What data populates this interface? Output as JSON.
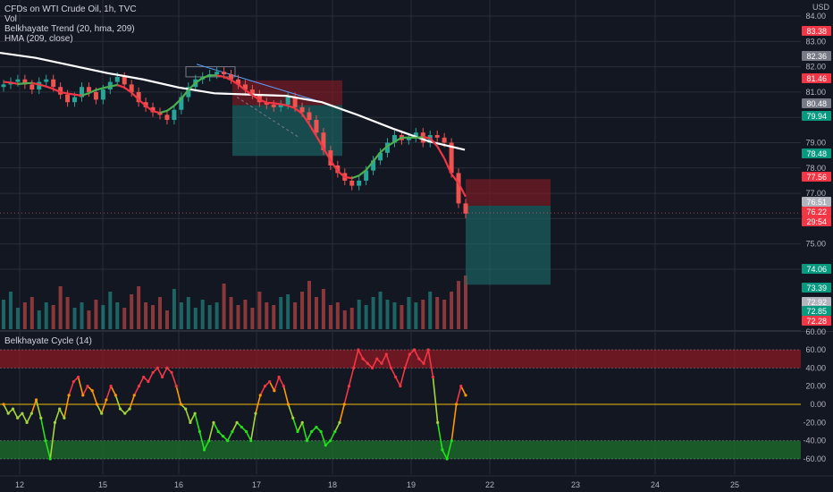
{
  "legend": {
    "symbol": "CFDs on WTI Crude Oil, 1h, TVC",
    "volume": "Vol",
    "trend": "Belkhayate Trend (20, hma, 209)",
    "hma": "HMA (209, close)",
    "oscillator": "Belkhayate Cycle  (14)"
  },
  "price_axis": {
    "currency": "USD",
    "ticks": [
      "84.00",
      "83.00",
      "82.00",
      "81.00",
      "80.00",
      "79.00",
      "78.00",
      "77.00",
      "76.00",
      "75.00",
      "74.00"
    ],
    "badges": [
      {
        "text": "83.38",
        "color": "#f23645"
      },
      {
        "text": "82.36",
        "color": "#787b86"
      },
      {
        "text": "81.46",
        "color": "#f23645"
      },
      {
        "text": "80.48",
        "color": "#787b86"
      },
      {
        "text": "79.94",
        "color": "#089981"
      },
      {
        "text": "78.48",
        "color": "#089981"
      },
      {
        "text": "77.56",
        "color": "#f23645"
      },
      {
        "text": "76.51",
        "color": "#b2b5be"
      },
      {
        "text": "76.22",
        "color": "#f23645"
      },
      {
        "text": "29:54",
        "color": "#f23645"
      },
      {
        "text": "74.06",
        "color": "#089981"
      },
      {
        "text": "73.39",
        "color": "#089981"
      },
      {
        "text": "72.92",
        "color": "#b2b5be"
      },
      {
        "text": "72.85",
        "color": "#089981"
      },
      {
        "text": "72.28",
        "color": "#f23645"
      }
    ]
  },
  "osc_axis": {
    "ticks": [
      "60.00",
      "40.00",
      "20.00",
      "0.00",
      "-20.00",
      "-40.00",
      "-60.00"
    ],
    "top_label": "60.00"
  },
  "time_axis": [
    "12",
    "15",
    "16",
    "17",
    "18",
    "19",
    "22",
    "23",
    "24",
    "25"
  ],
  "colors": {
    "background": "#131722",
    "grid": "#2a2e39",
    "up": "#26a69a",
    "down": "#ef5350",
    "hma": "#ffffff",
    "trend_up": "#4caf50",
    "trend_down": "#f23645",
    "zero_line": "#f0b90b"
  },
  "chart_data": [
    {
      "type": "candlestick",
      "title": "CFDs on WTI Crude Oil, 1h, TVC",
      "ylim": [
        74,
        84.3
      ],
      "x_labels": [
        "12",
        "15",
        "16",
        "17",
        "18",
        "19",
        "22",
        "23",
        "24",
        "25"
      ],
      "close_path": [
        81.3,
        81.4,
        81.5,
        81.3,
        81.1,
        81.4,
        81.5,
        81.2,
        80.9,
        80.6,
        80.8,
        81.2,
        81.0,
        80.7,
        81.1,
        81.4,
        81.6,
        81.3,
        81.0,
        80.6,
        80.4,
        80.2,
        80.1,
        79.9,
        80.3,
        80.8,
        81.2,
        81.5,
        81.6,
        81.7,
        81.8,
        81.7,
        81.5,
        81.3,
        81.1,
        80.9,
        80.6,
        80.5,
        80.4,
        80.5,
        80.8,
        80.4,
        80.2,
        79.9,
        79.4,
        78.7,
        78.1,
        77.8,
        77.5,
        77.3,
        77.5,
        77.9,
        78.3,
        78.6,
        79.0,
        79.3,
        79.1,
        79.2,
        79.4,
        79.0,
        79.3,
        79.2,
        79.0,
        77.8,
        76.6,
        76.2
      ],
      "volume_path": [
        0.55,
        0.7,
        0.4,
        0.5,
        0.6,
        0.35,
        0.5,
        0.45,
        0.8,
        0.6,
        0.4,
        0.5,
        0.35,
        0.55,
        0.45,
        0.7,
        0.5,
        0.4,
        0.65,
        0.8,
        0.5,
        0.45,
        0.6,
        0.35,
        0.75,
        0.5,
        0.6,
        0.4,
        0.55,
        0.45,
        0.5,
        0.85,
        0.6,
        0.45,
        0.55,
        0.4,
        0.7,
        0.5,
        0.45,
        0.6,
        0.65,
        0.5,
        0.7,
        0.9,
        0.6,
        0.75,
        0.45,
        0.5,
        0.35,
        0.4,
        0.55,
        0.45,
        0.6,
        0.7,
        0.55,
        0.5,
        0.45,
        0.6,
        0.5,
        0.55,
        0.7,
        0.6,
        0.55,
        0.7,
        0.9,
        1.0
      ],
      "hma_path": [
        [
          0,
          82.55
        ],
        [
          40,
          82.35
        ],
        [
          80,
          82.05
        ],
        [
          120,
          81.75
        ],
        [
          160,
          81.5
        ],
        [
          200,
          81.18
        ],
        [
          240,
          80.95
        ],
        [
          280,
          80.9
        ],
        [
          320,
          80.85
        ],
        [
          360,
          80.6
        ],
        [
          400,
          80.1
        ],
        [
          440,
          79.55
        ],
        [
          480,
          79.05
        ],
        [
          520,
          78.72
        ]
      ],
      "last_price": 76.22
    },
    {
      "type": "line",
      "title": "Belkhayate Cycle  (14)",
      "ylim": [
        -65,
        68
      ],
      "levels": {
        "upper": [
          40,
          60
        ],
        "zero": 0,
        "lower": [
          -40,
          -60
        ]
      },
      "y": [
        0,
        -10,
        -5,
        -15,
        -10,
        -20,
        -10,
        5,
        -15,
        -40,
        -60,
        -20,
        -5,
        -15,
        10,
        25,
        30,
        10,
        20,
        15,
        0,
        -10,
        5,
        20,
        10,
        -5,
        -10,
        -5,
        10,
        20,
        30,
        25,
        35,
        40,
        30,
        40,
        35,
        20,
        0,
        -5,
        -20,
        -10,
        -30,
        -50,
        -40,
        -20,
        -30,
        -35,
        -40,
        -30,
        -20,
        -25,
        -30,
        -40,
        -10,
        10,
        20,
        25,
        15,
        30,
        20,
        0,
        -15,
        -30,
        -20,
        -40,
        -30,
        -25,
        -30,
        -45,
        -40,
        -30,
        -20,
        0,
        20,
        40,
        60,
        50,
        45,
        40,
        50,
        45,
        55,
        40,
        30,
        20,
        40,
        55,
        60,
        50,
        45,
        60,
        30,
        -20,
        -50,
        -60,
        -40,
        0,
        20,
        10
      ]
    }
  ]
}
